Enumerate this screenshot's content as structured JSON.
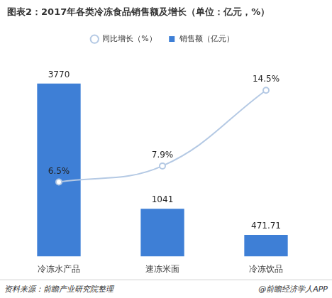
{
  "chart_data": {
    "type": "bar",
    "title": "图表2：2017年各类冷冻食品销售额及增长（单位：亿元，%）",
    "categories": [
      "冷冻水产品",
      "速冻米面",
      "冷冻饮品"
    ],
    "series": [
      {
        "name": "销售额（亿元）",
        "type": "bar",
        "color": "#3e7fd6",
        "values": [
          3770,
          1041,
          471.71
        ]
      },
      {
        "name": "同比增长（%）",
        "type": "line",
        "axis": "y2",
        "color": "#b4c9e4",
        "marker": "circle",
        "values": [
          6.5,
          7.9,
          14.5
        ],
        "value_labels": [
          "6.5%",
          "7.9%",
          "14.5%"
        ]
      }
    ],
    "ylim": [
      0,
      4500
    ],
    "y2lim": [
      0,
      18
    ],
    "legend": "top",
    "data_labels": true,
    "tick_labels": "x",
    "grid": false,
    "annotations": [
      "资料来源：前瞻产业研究院整理",
      "@前瞻经济学人APP"
    ]
  }
}
